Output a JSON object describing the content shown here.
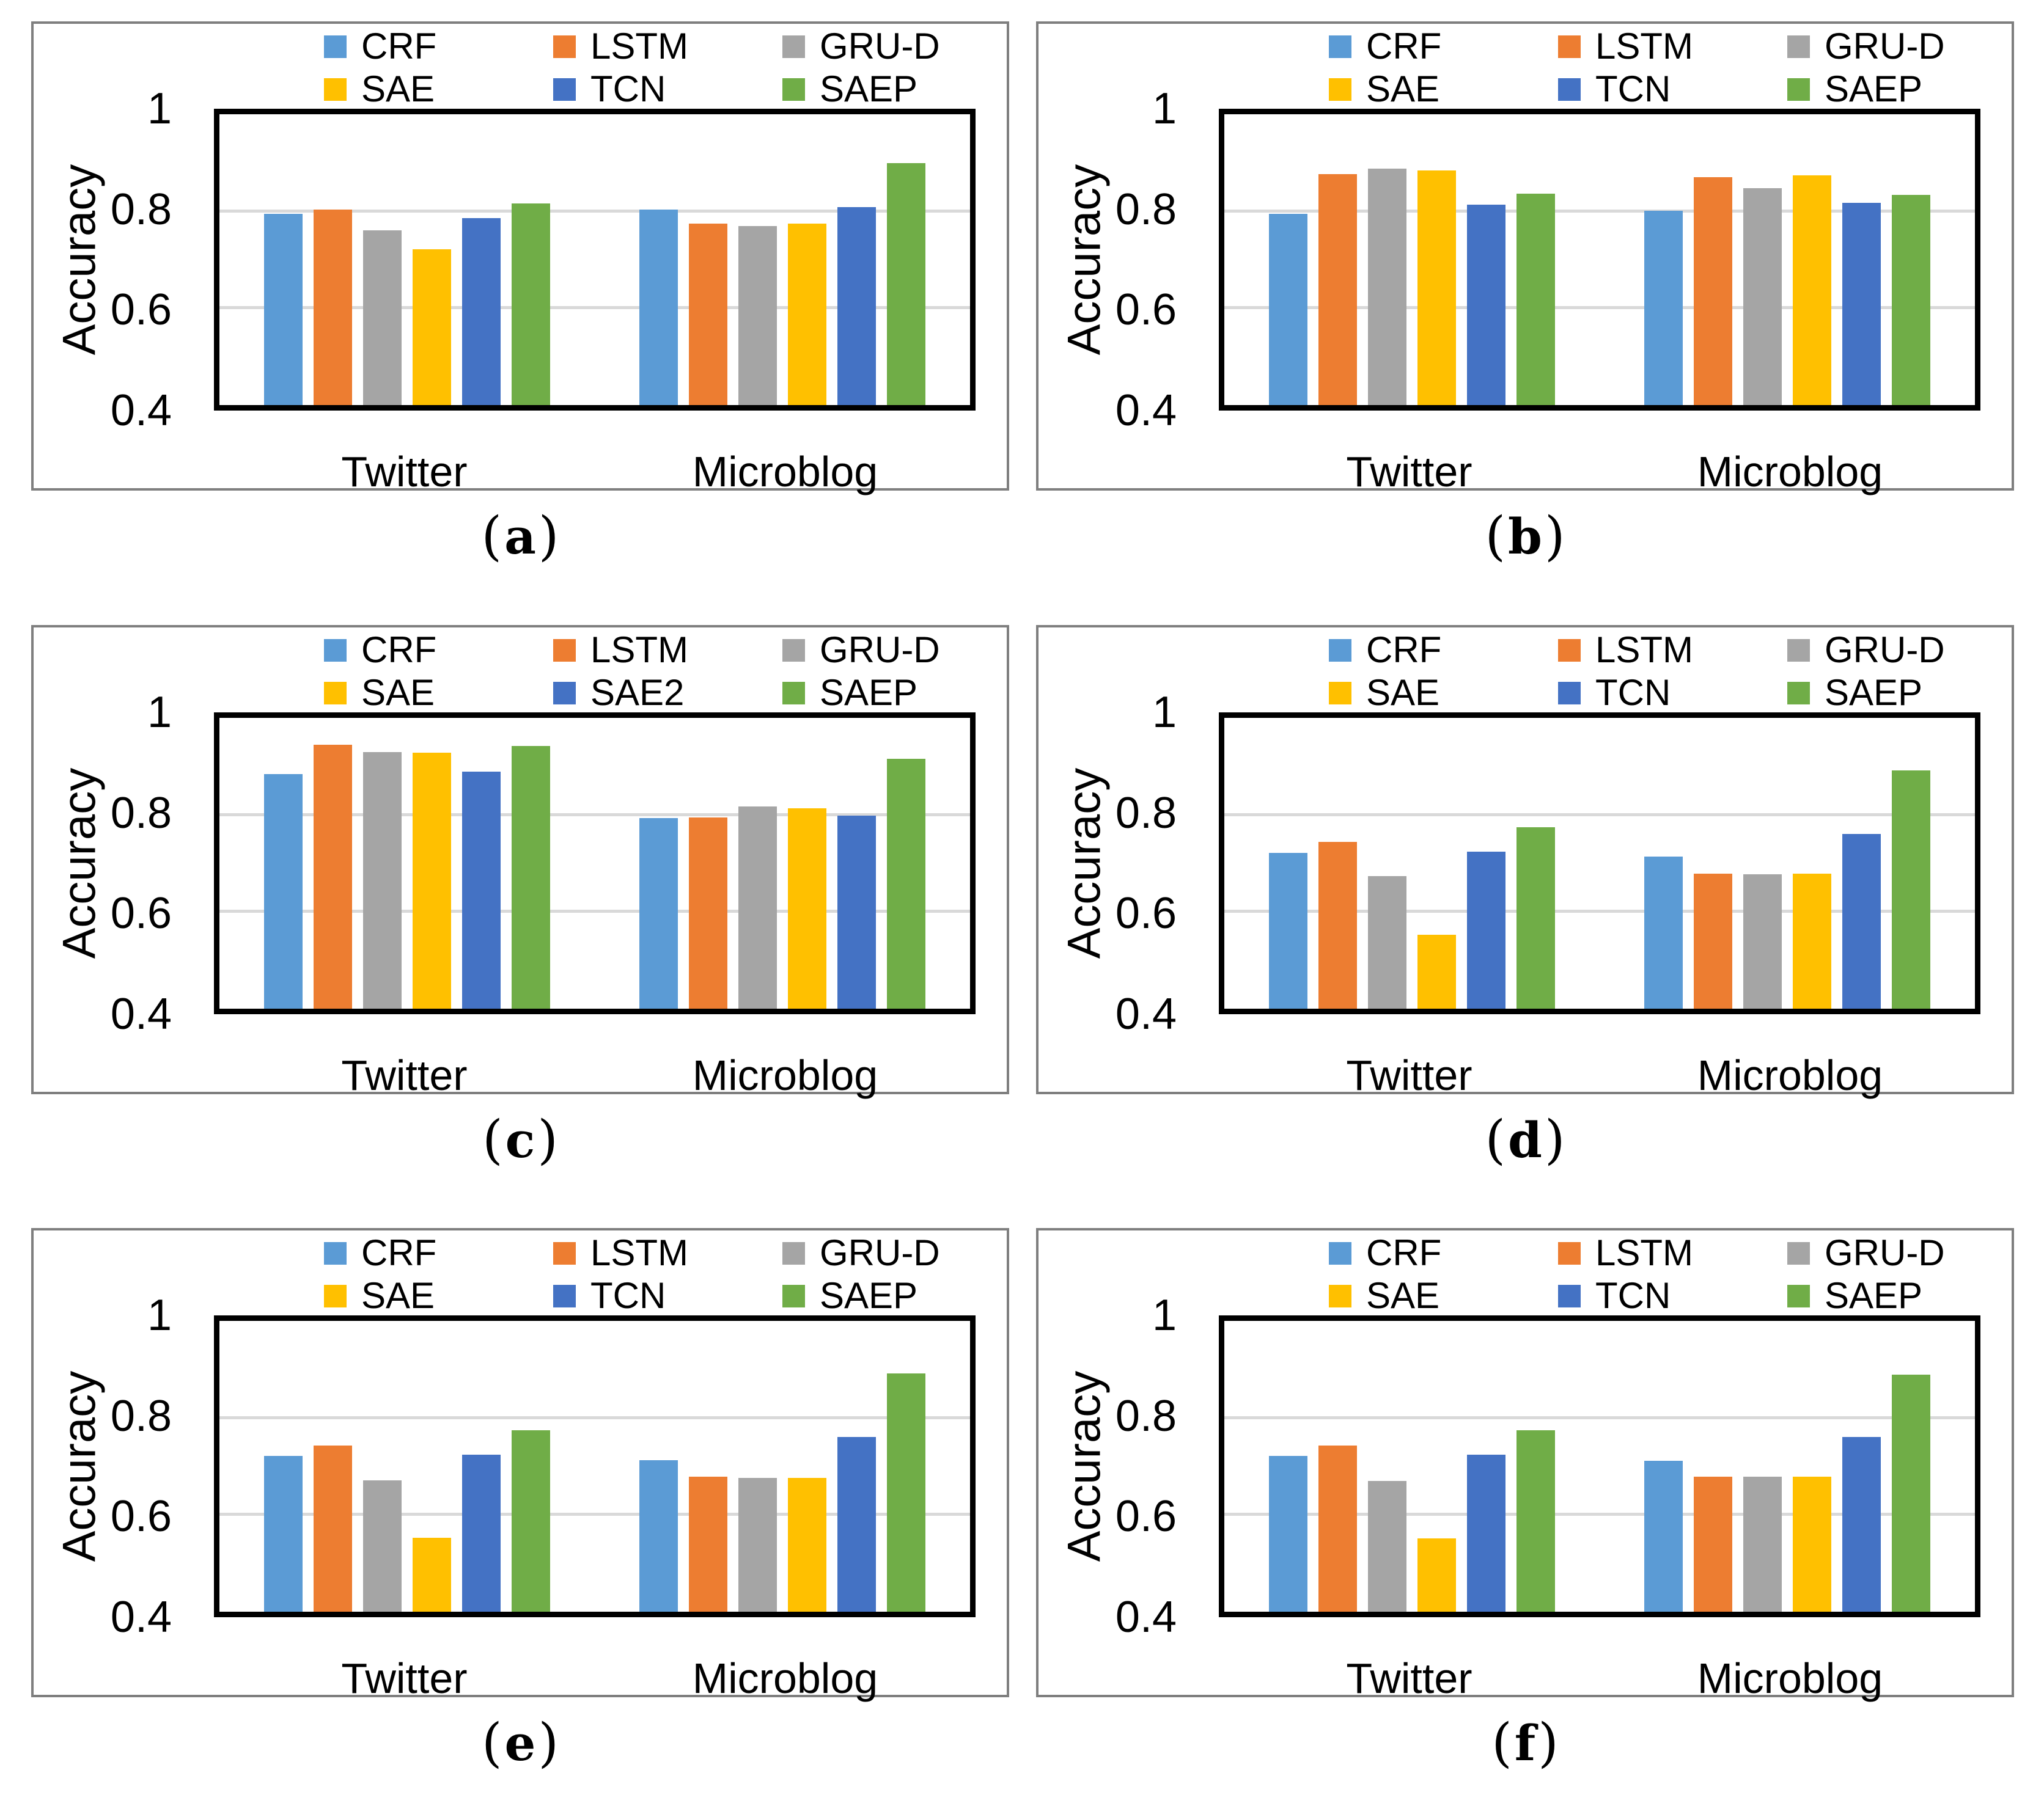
{
  "palette": {
    "CRF": "#5B9BD5",
    "LSTM": "#ED7D31",
    "GRU-D": "#A5A5A5",
    "SAE": "#FFC000",
    "TCN": "#4472C4",
    "SAE2": "#4472C4",
    "SAEP": "#70AD47",
    "gridline": "#D9D9D9",
    "plot_border": "#000000",
    "panel_border": "#7F7F7F"
  },
  "chart_data": [
    {
      "id": "a",
      "type": "bar",
      "caption": {
        "open": "(",
        "letter": "a",
        "close": ")"
      },
      "ylabel": "Accuracy",
      "ylim": [
        0.4,
        1
      ],
      "yticks": [
        {
          "label": "1",
          "value": 1
        },
        {
          "label": "0.8",
          "value": 0.8
        },
        {
          "label": "0.6",
          "value": 0.6
        },
        {
          "label": "0.4",
          "value": 0.4
        }
      ],
      "gridlines": [
        0.8,
        0.6
      ],
      "grid": true,
      "legend_position": "top",
      "categories": [
        "Twitter",
        "Microblog"
      ],
      "series": [
        {
          "name": "CRF",
          "color": "#5B9BD5",
          "values": [
            0.795,
            0.803
          ]
        },
        {
          "name": "LSTM",
          "color": "#ED7D31",
          "values": [
            0.803,
            0.775
          ]
        },
        {
          "name": "GRU-D",
          "color": "#A5A5A5",
          "values": [
            0.76,
            0.769
          ]
        },
        {
          "name": "SAE",
          "color": "#FFC000",
          "values": [
            0.722,
            0.774
          ]
        },
        {
          "name": "TCN",
          "color": "#4472C4",
          "values": [
            0.786,
            0.808
          ]
        },
        {
          "name": "SAEP",
          "color": "#70AD47",
          "values": [
            0.816,
            0.899
          ]
        }
      ]
    },
    {
      "id": "b",
      "type": "bar",
      "caption": {
        "open": "(",
        "letter": "b",
        "close": ")"
      },
      "ylabel": "Accuracy",
      "ylim": [
        0.4,
        1
      ],
      "yticks": [
        {
          "label": "1",
          "value": 1
        },
        {
          "label": "0.8",
          "value": 0.8
        },
        {
          "label": "0.6",
          "value": 0.6
        },
        {
          "label": "0.4",
          "value": 0.4
        }
      ],
      "gridlines": [
        0.8,
        0.6
      ],
      "grid": true,
      "legend_position": "top",
      "categories": [
        "Twitter",
        "Microblog"
      ],
      "series": [
        {
          "name": "CRF",
          "color": "#5B9BD5",
          "values": [
            0.795,
            0.801
          ]
        },
        {
          "name": "LSTM",
          "color": "#ED7D31",
          "values": [
            0.876,
            0.87
          ]
        },
        {
          "name": "GRU-D",
          "color": "#A5A5A5",
          "values": [
            0.888,
            0.848
          ]
        },
        {
          "name": "SAE",
          "color": "#FFC000",
          "values": [
            0.884,
            0.874
          ]
        },
        {
          "name": "TCN",
          "color": "#4472C4",
          "values": [
            0.814,
            0.817
          ]
        },
        {
          "name": "SAEP",
          "color": "#70AD47",
          "values": [
            0.836,
            0.834
          ]
        }
      ]
    },
    {
      "id": "c",
      "type": "bar",
      "caption": {
        "open": "(",
        "letter": "c",
        "close": ")"
      },
      "ylabel": "Accuracy",
      "ylim": [
        0.4,
        1
      ],
      "yticks": [
        {
          "label": "1",
          "value": 1
        },
        {
          "label": "0.8",
          "value": 0.8
        },
        {
          "label": "0.6",
          "value": 0.6
        },
        {
          "label": "0.4",
          "value": 0.4
        }
      ],
      "gridlines": [
        0.8,
        0.6
      ],
      "grid": true,
      "legend_position": "top",
      "categories": [
        "Twitter",
        "Microblog"
      ],
      "series": [
        {
          "name": "CRF",
          "color": "#5B9BD5",
          "values": [
            0.884,
            0.793
          ]
        },
        {
          "name": "LSTM",
          "color": "#ED7D31",
          "values": [
            0.944,
            0.795
          ]
        },
        {
          "name": "GRU-D",
          "color": "#A5A5A5",
          "values": [
            0.93,
            0.817
          ]
        },
        {
          "name": "SAE",
          "color": "#FFC000",
          "values": [
            0.928,
            0.814
          ]
        },
        {
          "name": "SAE2",
          "color": "#4472C4",
          "values": [
            0.889,
            0.798
          ]
        },
        {
          "name": "SAEP",
          "color": "#70AD47",
          "values": [
            0.942,
            0.916
          ]
        }
      ]
    },
    {
      "id": "d",
      "type": "bar",
      "caption": {
        "open": "(",
        "letter": "d",
        "close": ")"
      },
      "ylabel": "Accuracy",
      "ylim": [
        0.4,
        1
      ],
      "yticks": [
        {
          "label": "1",
          "value": 1
        },
        {
          "label": "0.8",
          "value": 0.8
        },
        {
          "label": "0.6",
          "value": 0.6
        },
        {
          "label": "0.4",
          "value": 0.4
        }
      ],
      "gridlines": [
        0.8,
        0.6
      ],
      "grid": true,
      "legend_position": "top",
      "categories": [
        "Twitter",
        "Microblog"
      ],
      "series": [
        {
          "name": "CRF",
          "color": "#5B9BD5",
          "values": [
            0.721,
            0.714
          ]
        },
        {
          "name": "LSTM",
          "color": "#ED7D31",
          "values": [
            0.744,
            0.679
          ]
        },
        {
          "name": "GRU-D",
          "color": "#A5A5A5",
          "values": [
            0.674,
            0.677
          ]
        },
        {
          "name": "SAE",
          "color": "#FFC000",
          "values": [
            0.552,
            0.678
          ]
        },
        {
          "name": "TCN",
          "color": "#4472C4",
          "values": [
            0.724,
            0.761
          ]
        },
        {
          "name": "SAEP",
          "color": "#70AD47",
          "values": [
            0.775,
            0.891
          ]
        }
      ]
    },
    {
      "id": "e",
      "type": "bar",
      "caption": {
        "open": "(",
        "letter": "e",
        "close": ")"
      },
      "ylabel": "Accuracy",
      "ylim": [
        0.4,
        1
      ],
      "yticks": [
        {
          "label": "1",
          "value": 1
        },
        {
          "label": "0.8",
          "value": 0.8
        },
        {
          "label": "0.6",
          "value": 0.6
        },
        {
          "label": "0.4",
          "value": 0.4
        }
      ],
      "gridlines": [
        0.8,
        0.6
      ],
      "grid": true,
      "legend_position": "top",
      "categories": [
        "Twitter",
        "Microblog"
      ],
      "series": [
        {
          "name": "CRF",
          "color": "#5B9BD5",
          "values": [
            0.721,
            0.713
          ]
        },
        {
          "name": "LSTM",
          "color": "#ED7D31",
          "values": [
            0.743,
            0.678
          ]
        },
        {
          "name": "GRU-D",
          "color": "#A5A5A5",
          "values": [
            0.671,
            0.676
          ]
        },
        {
          "name": "SAE",
          "color": "#FFC000",
          "values": [
            0.553,
            0.676
          ]
        },
        {
          "name": "TCN",
          "color": "#4472C4",
          "values": [
            0.724,
            0.761
          ]
        },
        {
          "name": "SAEP",
          "color": "#70AD47",
          "values": [
            0.775,
            0.891
          ]
        }
      ]
    },
    {
      "id": "f",
      "type": "bar",
      "caption": {
        "open": "(",
        "letter": "f",
        "close": ")"
      },
      "ylabel": "Accuracy",
      "ylim": [
        0.4,
        1
      ],
      "yticks": [
        {
          "label": "1",
          "value": 1
        },
        {
          "label": "0.8",
          "value": 0.8
        },
        {
          "label": "0.6",
          "value": 0.6
        },
        {
          "label": "0.4",
          "value": 0.4
        }
      ],
      "gridlines": [
        0.8,
        0.6
      ],
      "grid": true,
      "legend_position": "top",
      "categories": [
        "Twitter",
        "Microblog"
      ],
      "series": [
        {
          "name": "CRF",
          "color": "#5B9BD5",
          "values": [
            0.721,
            0.711
          ]
        },
        {
          "name": "LSTM",
          "color": "#ED7D31",
          "values": [
            0.743,
            0.678
          ]
        },
        {
          "name": "GRU-D",
          "color": "#A5A5A5",
          "values": [
            0.67,
            0.678
          ]
        },
        {
          "name": "SAE",
          "color": "#FFC000",
          "values": [
            0.551,
            0.678
          ]
        },
        {
          "name": "TCN",
          "color": "#4472C4",
          "values": [
            0.724,
            0.76
          ]
        },
        {
          "name": "SAEP",
          "color": "#70AD47",
          "values": [
            0.775,
            0.889
          ]
        }
      ]
    }
  ]
}
